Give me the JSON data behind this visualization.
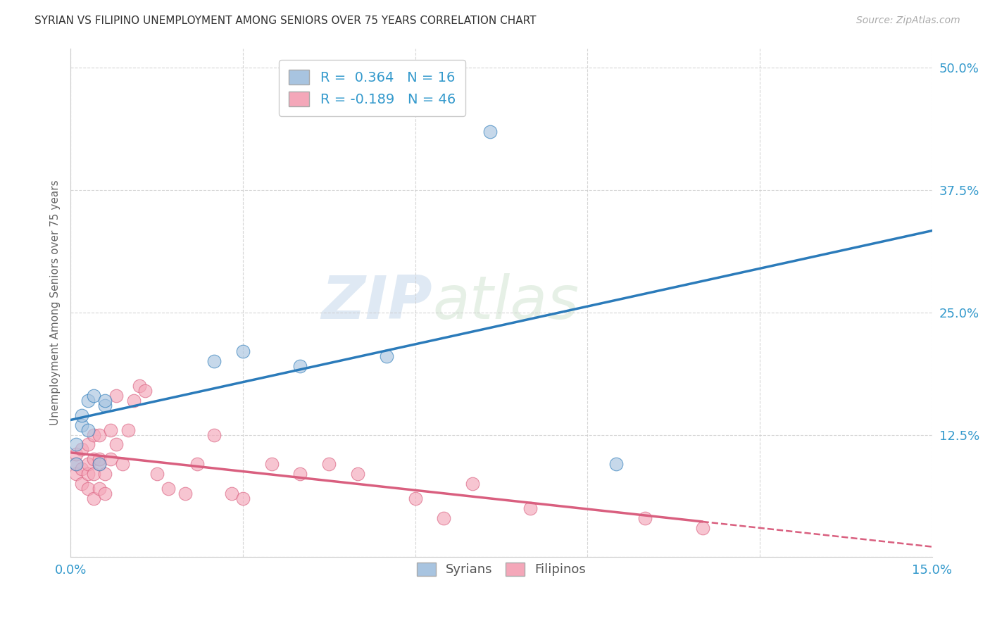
{
  "title": "SYRIAN VS FILIPINO UNEMPLOYMENT AMONG SENIORS OVER 75 YEARS CORRELATION CHART",
  "source": "Source: ZipAtlas.com",
  "ylabel": "Unemployment Among Seniors over 75 years",
  "xlim": [
    0.0,
    0.15
  ],
  "ylim": [
    0.0,
    0.52
  ],
  "xticks": [
    0.0,
    0.03,
    0.06,
    0.09,
    0.12,
    0.15
  ],
  "xtick_labels": [
    "0.0%",
    "",
    "",
    "",
    "",
    "15.0%"
  ],
  "yticks": [
    0.0,
    0.125,
    0.25,
    0.375,
    0.5
  ],
  "ytick_labels": [
    "",
    "12.5%",
    "25.0%",
    "37.5%",
    "50.0%"
  ],
  "syrian_R": 0.364,
  "syrian_N": 16,
  "filipino_R": -0.189,
  "filipino_N": 46,
  "syrian_color": "#a8c4e0",
  "syrian_line_color": "#2b7bba",
  "filipino_color": "#f4a7b9",
  "filipino_line_color": "#d95f7f",
  "watermark_zip": "ZIP",
  "watermark_atlas": "atlas",
  "background_color": "#ffffff",
  "syrian_x": [
    0.001,
    0.001,
    0.002,
    0.002,
    0.003,
    0.003,
    0.004,
    0.005,
    0.006,
    0.006,
    0.025,
    0.03,
    0.04,
    0.055,
    0.073,
    0.095
  ],
  "syrian_y": [
    0.095,
    0.115,
    0.135,
    0.145,
    0.13,
    0.16,
    0.165,
    0.095,
    0.155,
    0.16,
    0.2,
    0.21,
    0.195,
    0.205,
    0.435,
    0.095
  ],
  "filipino_x": [
    0.001,
    0.001,
    0.001,
    0.002,
    0.002,
    0.002,
    0.003,
    0.003,
    0.003,
    0.003,
    0.004,
    0.004,
    0.004,
    0.004,
    0.005,
    0.005,
    0.005,
    0.005,
    0.006,
    0.006,
    0.007,
    0.007,
    0.008,
    0.008,
    0.009,
    0.01,
    0.011,
    0.012,
    0.013,
    0.015,
    0.017,
    0.02,
    0.022,
    0.025,
    0.028,
    0.03,
    0.035,
    0.04,
    0.045,
    0.05,
    0.06,
    0.065,
    0.07,
    0.08,
    0.1,
    0.11
  ],
  "filipino_y": [
    0.085,
    0.095,
    0.105,
    0.075,
    0.09,
    0.11,
    0.07,
    0.085,
    0.095,
    0.115,
    0.06,
    0.085,
    0.1,
    0.125,
    0.07,
    0.095,
    0.1,
    0.125,
    0.065,
    0.085,
    0.1,
    0.13,
    0.115,
    0.165,
    0.095,
    0.13,
    0.16,
    0.175,
    0.17,
    0.085,
    0.07,
    0.065,
    0.095,
    0.125,
    0.065,
    0.06,
    0.095,
    0.085,
    0.095,
    0.085,
    0.06,
    0.04,
    0.075,
    0.05,
    0.04,
    0.03
  ]
}
